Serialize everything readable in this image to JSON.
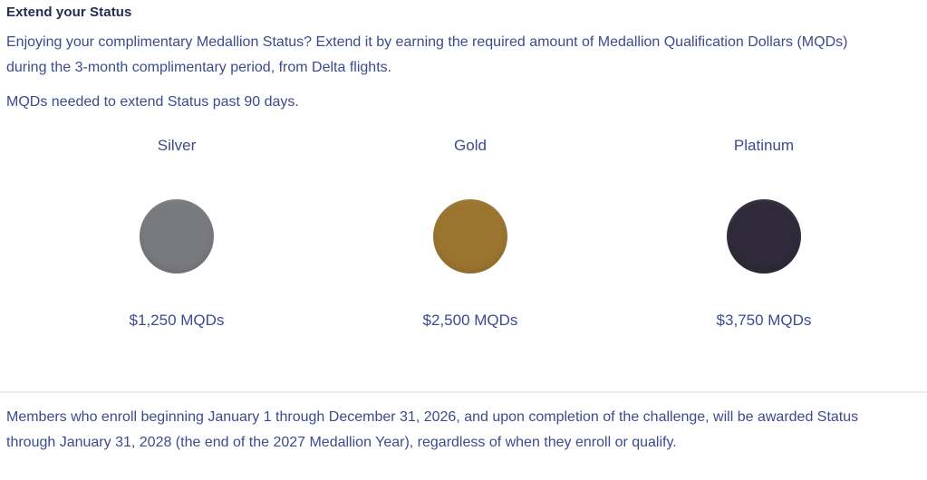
{
  "section": {
    "heading": "Extend your Status",
    "intro": "Enjoying your complimentary Medallion Status? Extend it by earning the required amount of Medallion Qualification Dollars (MQDs)\nduring the 3-month complimentary period, from Delta flights.",
    "subheading": "MQDs needed to extend Status past 90 days.",
    "footnote": "Members who enroll beginning January 1 through December 31, 2026, and upon completion of the challenge, will be awarded Status\nthrough January 31, 2028 (the end of the 2027 Medallion Year), regardless of when they enroll or qualify."
  },
  "tiers": [
    {
      "name": "Silver",
      "requirement": "$1,250 MQDs",
      "medallion_color": "#797A7D"
    },
    {
      "name": "Gold",
      "requirement": "$2,500 MQDs",
      "medallion_color": "#9B752F"
    },
    {
      "name": "Platinum",
      "requirement": "$3,750 MQDs",
      "medallion_color": "#2E2A39"
    }
  ],
  "colors": {
    "heading_text": "#232C55",
    "body_text": "#3C4B90",
    "divider": "#ECECEC",
    "background": "#FFFFFF"
  }
}
